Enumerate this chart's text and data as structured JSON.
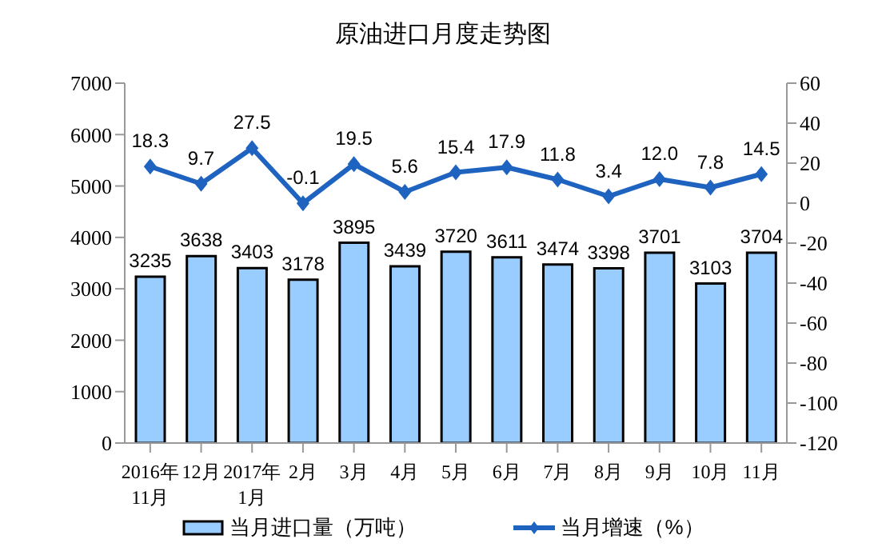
{
  "chart_data": {
    "type": "bar",
    "title": "原油进口月度走势图",
    "categories": [
      "2016年\n11月",
      "12月",
      "2017年\n1月",
      "2月",
      "3月",
      "4月",
      "5月",
      "6月",
      "7月",
      "8月",
      "9月",
      "10月",
      "11月"
    ],
    "series": [
      {
        "name": "当月进口量（万吨）",
        "color": "#99ccff",
        "values": [
          3235,
          3638,
          3403,
          3178,
          3895,
          3439,
          3720,
          3611,
          3474,
          3398,
          3701,
          3103,
          3704
        ],
        "value_labels": [
          "3235",
          "3638",
          "3403",
          "3178",
          "3895",
          "3439",
          "3720",
          "3611",
          "3474",
          "3398",
          "3701",
          "3103",
          "3704"
        ]
      },
      {
        "name": "当月增速（%）",
        "type": "line",
        "axis": "y2",
        "color": "#1f63c0",
        "values": [
          18.3,
          9.7,
          27.5,
          -0.1,
          19.5,
          5.6,
          15.4,
          17.9,
          11.8,
          3.4,
          12.0,
          7.8,
          14.5
        ],
        "value_labels": [
          "18.3",
          "9.7",
          "27.5",
          "-0.1",
          "19.5",
          "5.6",
          "15.4",
          "17.9",
          "11.8",
          "3.4",
          "12.0",
          "7.8",
          "14.5"
        ]
      }
    ],
    "ylim": [
      0,
      7000
    ],
    "yticks": [
      0,
      1000,
      2000,
      3000,
      4000,
      5000,
      6000,
      7000
    ],
    "y2lim": [
      -120,
      60
    ],
    "y2ticks": [
      -120,
      -100,
      -80,
      -60,
      -40,
      -20,
      0,
      20,
      40,
      60
    ],
    "legend": "bottom",
    "marker": "diamond",
    "grid": false
  }
}
